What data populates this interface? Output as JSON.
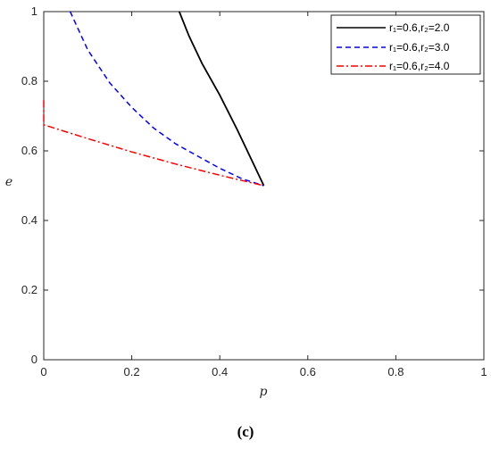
{
  "caption": "(c)",
  "chart_data": {
    "type": "line",
    "xlabel": "p",
    "ylabel": "e",
    "xlim": [
      0,
      1
    ],
    "ylim": [
      0,
      1
    ],
    "x_ticks": [
      "0",
      "0.2",
      "0.4",
      "0.6",
      "0.8",
      "1"
    ],
    "y_ticks": [
      "0",
      "0.2",
      "0.4",
      "0.6",
      "0.8",
      "1"
    ],
    "grid": false,
    "legend_position": "top-right",
    "series": [
      {
        "name": "r₁=0.6,r₂=2.0",
        "color": "#000000",
        "style": "solid",
        "points": [
          [
            0.308,
            1.0
          ],
          [
            0.33,
            0.93
          ],
          [
            0.36,
            0.85
          ],
          [
            0.4,
            0.76
          ],
          [
            0.44,
            0.66
          ],
          [
            0.47,
            0.58
          ],
          [
            0.5,
            0.5
          ]
        ]
      },
      {
        "name": "r₁=0.6,r₂=3.0",
        "color": "#0000ff",
        "style": "dashed",
        "points": [
          [
            0.06,
            1.0
          ],
          [
            0.1,
            0.89
          ],
          [
            0.15,
            0.795
          ],
          [
            0.2,
            0.725
          ],
          [
            0.25,
            0.665
          ],
          [
            0.3,
            0.62
          ],
          [
            0.35,
            0.585
          ],
          [
            0.4,
            0.55
          ],
          [
            0.45,
            0.52
          ],
          [
            0.5,
            0.5
          ]
        ]
      },
      {
        "name": "r₁=0.6,r₂=4.0",
        "color": "#ff0000",
        "style": "dashdot",
        "points": [
          [
            0.0,
            0.745
          ],
          [
            0.0,
            0.675
          ],
          [
            0.1,
            0.635
          ],
          [
            0.2,
            0.597
          ],
          [
            0.3,
            0.562
          ],
          [
            0.4,
            0.53
          ],
          [
            0.5,
            0.5
          ]
        ]
      }
    ]
  }
}
